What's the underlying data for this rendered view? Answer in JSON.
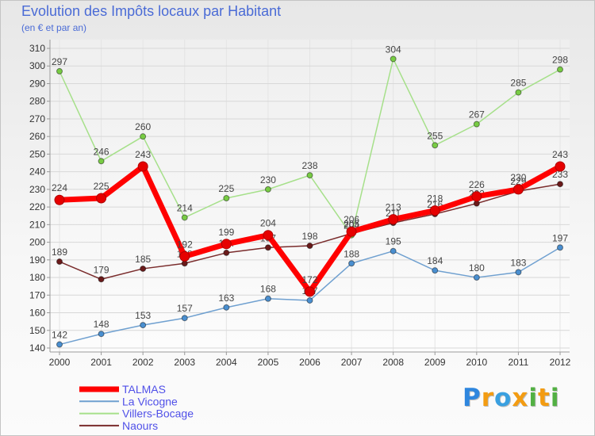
{
  "chart_data": {
    "type": "line",
    "title": "Evolution des Impôts locaux par Habitant",
    "subtitle": "(en € et par an)",
    "x": [
      "2000",
      "2001",
      "2002",
      "2003",
      "2004",
      "2005",
      "2006",
      "2007",
      "2008",
      "2009",
      "2010",
      "2011",
      "2012"
    ],
    "ylim": [
      140,
      310
    ],
    "yticks": [
      140,
      150,
      160,
      170,
      180,
      190,
      200,
      210,
      220,
      230,
      240,
      250,
      260,
      270,
      280,
      290,
      300,
      310
    ],
    "grid": true,
    "legend": "bottom-left",
    "series": [
      {
        "name": "TALMAS",
        "line_color": "#ff0000",
        "marker_color": "#e60000",
        "values": [
          224,
          225,
          243,
          192,
          199,
          204,
          172,
          206,
          213,
          218,
          226,
          230,
          243
        ]
      },
      {
        "name": "La Vicogne",
        "line_color": "#6fa0d0",
        "marker_color": "#4a8fd0",
        "values": [
          142,
          148,
          153,
          157,
          163,
          168,
          167,
          188,
          195,
          184,
          180,
          183,
          197
        ]
      },
      {
        "name": "Villers-Bocage",
        "line_color": "#a6e08a",
        "marker_color": "#78cc44",
        "values": [
          297,
          246,
          260,
          214,
          225,
          230,
          238,
          204,
          304,
          255,
          267,
          285,
          298
        ]
      },
      {
        "name": "Naours",
        "line_color": "#7a2c2c",
        "marker_color": "#6a1a1a",
        "values": [
          189,
          179,
          185,
          188,
          194,
          197,
          198,
          205,
          211,
          216,
          222,
          229,
          233
        ]
      }
    ]
  },
  "colors": {
    "title": "#4a6bd6",
    "legend_text": "#5050e8"
  },
  "logo": {
    "text": "Proxiti",
    "colors": [
      "#2e86de",
      "#f39c12",
      "#3aa0e0",
      "#f39c12",
      "#52b043",
      "#f39c12",
      "#52b043"
    ]
  }
}
